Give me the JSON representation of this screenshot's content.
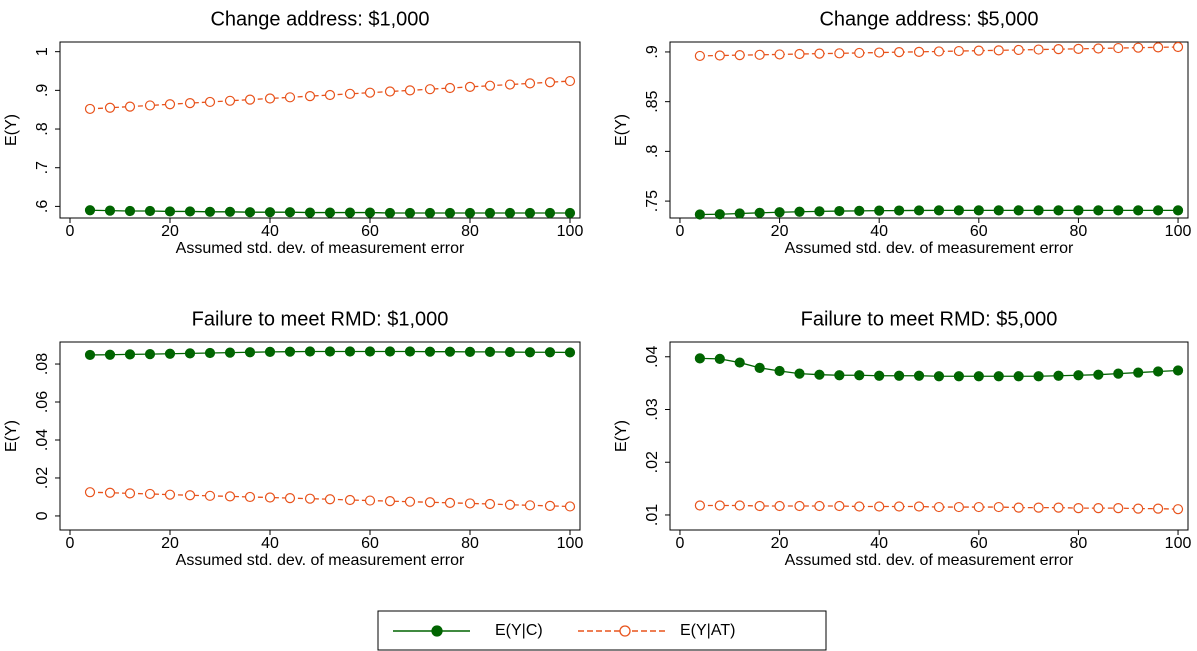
{
  "chart_data": [
    {
      "type": "line",
      "title": "Change address: $1,000",
      "xlabel": "Assumed std. dev. of measurement error",
      "ylabel": "E(Y)",
      "x": [
        4,
        8,
        12,
        16,
        20,
        24,
        28,
        32,
        36,
        40,
        44,
        48,
        52,
        56,
        60,
        64,
        68,
        72,
        76,
        80,
        84,
        88,
        92,
        96,
        100
      ],
      "xlim": [
        -2,
        102
      ],
      "xticks": [
        0,
        20,
        40,
        60,
        80,
        100
      ],
      "ylim": [
        0.57,
        1.025
      ],
      "yticks": [
        {
          "value": 0.6,
          "label": ".6"
        },
        {
          "value": 0.7,
          "label": ".7"
        },
        {
          "value": 0.8,
          "label": ".8"
        },
        {
          "value": 0.9,
          "label": ".9"
        },
        1
      ],
      "series": [
        {
          "name": "E(Y|C)",
          "color": "#006400",
          "values": [
            0.59,
            0.589,
            0.588,
            0.588,
            0.587,
            0.587,
            0.586,
            0.586,
            0.585,
            0.585,
            0.585,
            0.584,
            0.584,
            0.584,
            0.584,
            0.583,
            0.583,
            0.583,
            0.583,
            0.583,
            0.583,
            0.583,
            0.583,
            0.583,
            0.583
          ]
        },
        {
          "name": "E(Y|AT)",
          "color": "#e8531c",
          "values": [
            0.852,
            0.855,
            0.858,
            0.861,
            0.864,
            0.867,
            0.87,
            0.873,
            0.876,
            0.879,
            0.882,
            0.885,
            0.888,
            0.891,
            0.894,
            0.897,
            0.9,
            0.903,
            0.906,
            0.909,
            0.912,
            0.915,
            0.918,
            0.921,
            0.924
          ]
        }
      ]
    },
    {
      "type": "line",
      "title": "Change address: $5,000",
      "xlabel": "Assumed std. dev. of measurement error",
      "ylabel": "E(Y)",
      "x": [
        4,
        8,
        12,
        16,
        20,
        24,
        28,
        32,
        36,
        40,
        44,
        48,
        52,
        56,
        60,
        64,
        68,
        72,
        76,
        80,
        84,
        88,
        92,
        96,
        100
      ],
      "xlim": [
        -2,
        102
      ],
      "xticks": [
        0,
        20,
        40,
        60,
        80,
        100
      ],
      "ylim": [
        0.733,
        0.91
      ],
      "yticks": [
        {
          "value": 0.75,
          "label": ".75"
        },
        {
          "value": 0.8,
          "label": ".8"
        },
        {
          "value": 0.85,
          "label": ".85"
        },
        {
          "value": 0.9,
          "label": ".9"
        }
      ],
      "series": [
        {
          "color": "#006400",
          "values": [
            0.7365,
            0.7368,
            0.7375,
            0.7382,
            0.7388,
            0.7393,
            0.7397,
            0.74,
            0.7402,
            0.7404,
            0.7405,
            0.7406,
            0.7407,
            0.7407,
            0.7407,
            0.7407,
            0.7407,
            0.7407,
            0.7407,
            0.7407,
            0.7407,
            0.7407,
            0.7407,
            0.7407,
            0.7407
          ]
        },
        {
          "color": "#e8531c",
          "values": [
            0.896,
            0.8964,
            0.8968,
            0.8971,
            0.8975,
            0.8979,
            0.8983,
            0.8986,
            0.899,
            0.8994,
            0.8998,
            0.9001,
            0.9005,
            0.9009,
            0.9013,
            0.9016,
            0.902,
            0.9024,
            0.9028,
            0.9031,
            0.9035,
            0.9039,
            0.9043,
            0.9046,
            0.905
          ]
        }
      ]
    },
    {
      "type": "line",
      "title": "Failure to meet RMD: $1,000",
      "xlabel": "Assumed std. dev. of measurement error",
      "ylabel": "E(Y)",
      "x": [
        4,
        8,
        12,
        16,
        20,
        24,
        28,
        32,
        36,
        40,
        44,
        48,
        52,
        56,
        60,
        64,
        68,
        72,
        76,
        80,
        84,
        88,
        92,
        96,
        100
      ],
      "xlim": [
        -2,
        102
      ],
      "xticks": [
        0,
        20,
        40,
        60,
        80,
        100
      ],
      "ylim": [
        -0.0074,
        0.0916
      ],
      "yticks": [
        0,
        {
          "value": 0.02,
          "label": ".02"
        },
        {
          "value": 0.04,
          "label": ".04"
        },
        {
          "value": 0.06,
          "label": ".06"
        },
        {
          "value": 0.08,
          "label": ".08"
        }
      ],
      "series": [
        {
          "color": "#006400",
          "values": [
            0.0848,
            0.0849,
            0.0851,
            0.0852,
            0.0854,
            0.0856,
            0.0858,
            0.086,
            0.0862,
            0.0864,
            0.0865,
            0.0866,
            0.0866,
            0.0866,
            0.0866,
            0.0866,
            0.0866,
            0.0865,
            0.0865,
            0.0864,
            0.0864,
            0.0863,
            0.0862,
            0.0862,
            0.0861
          ]
        },
        {
          "color": "#e8531c",
          "values": [
            0.0125,
            0.0122,
            0.0119,
            0.0116,
            0.0112,
            0.0109,
            0.0106,
            0.0103,
            0.01,
            0.0097,
            0.0094,
            0.0091,
            0.0088,
            0.0084,
            0.0081,
            0.0078,
            0.0075,
            0.0072,
            0.0069,
            0.0066,
            0.0063,
            0.0059,
            0.0056,
            0.0053,
            0.005
          ]
        }
      ]
    },
    {
      "type": "line",
      "title": "Failure to meet RMD: $5,000",
      "xlabel": "Assumed std. dev. of measurement error",
      "ylabel": "E(Y)",
      "x": [
        4,
        8,
        12,
        16,
        20,
        24,
        28,
        32,
        36,
        40,
        44,
        48,
        52,
        56,
        60,
        64,
        68,
        72,
        76,
        80,
        84,
        88,
        92,
        96,
        100
      ],
      "xlim": [
        -2,
        102
      ],
      "xticks": [
        0,
        20,
        40,
        60,
        80,
        100
      ],
      "ylim": [
        0.00715,
        0.0428
      ],
      "yticks": [
        {
          "value": 0.01,
          "label": ".01"
        },
        {
          "value": 0.02,
          "label": ".02"
        },
        {
          "value": 0.03,
          "label": ".03"
        },
        {
          "value": 0.04,
          "label": ".04"
        }
      ],
      "series": [
        {
          "color": "#006400",
          "values": [
            0.0397,
            0.0396,
            0.0389,
            0.0379,
            0.0373,
            0.0368,
            0.0366,
            0.0365,
            0.0365,
            0.0364,
            0.0364,
            0.0364,
            0.0363,
            0.0363,
            0.0363,
            0.0363,
            0.0363,
            0.0363,
            0.0364,
            0.0365,
            0.0366,
            0.0368,
            0.037,
            0.0372,
            0.0374
          ]
        },
        {
          "color": "#e8531c",
          "values": [
            0.0118,
            0.0118,
            0.0118,
            0.0117,
            0.0117,
            0.0117,
            0.0117,
            0.0117,
            0.0116,
            0.0116,
            0.0116,
            0.0116,
            0.0115,
            0.0115,
            0.0115,
            0.0115,
            0.0114,
            0.0114,
            0.0114,
            0.0113,
            0.0113,
            0.0113,
            0.0112,
            0.0112,
            0.0111
          ]
        }
      ]
    }
  ]
}
